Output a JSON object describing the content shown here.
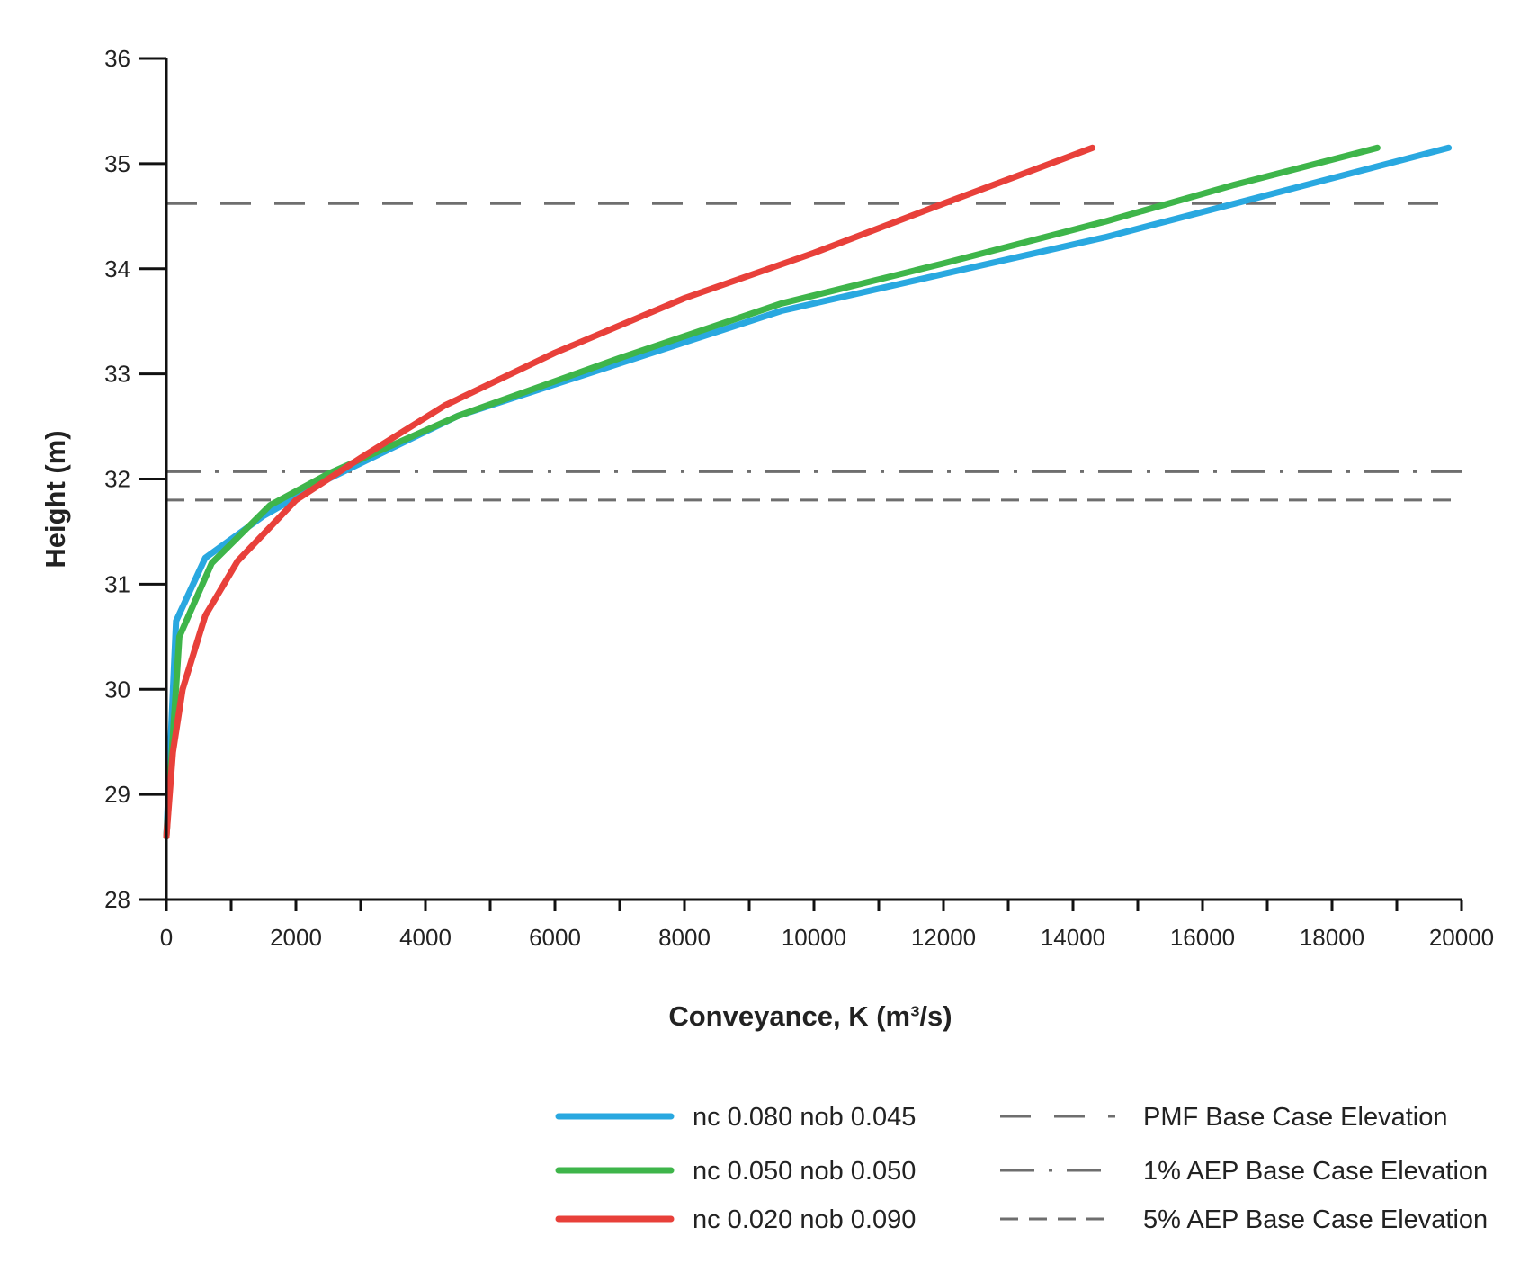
{
  "chart_data": {
    "type": "line",
    "title": "",
    "xlabel": "Conveyance, K (m³/s)",
    "ylabel": "Height (m)",
    "xlim": [
      0,
      20000
    ],
    "ylim": [
      28,
      36
    ],
    "xticks": [
      "0",
      "2000",
      "4000",
      "6000",
      "8000",
      "10000",
      "12000",
      "14000",
      "16000",
      "18000",
      "20000"
    ],
    "yticks": [
      "28",
      "29",
      "30",
      "31",
      "32",
      "33",
      "34",
      "35",
      "36"
    ],
    "grid": false,
    "legend_position": "bottom-right",
    "series": [
      {
        "name": "nc 0.080 nob 0.045",
        "color": "#29a8e0",
        "x": [
          0,
          150,
          600,
          1500,
          2500,
          4500,
          7000,
          9500,
          12000,
          14500,
          17000,
          19800
        ],
        "y": [
          28.6,
          30.65,
          31.25,
          31.65,
          32.0,
          32.6,
          33.1,
          33.6,
          33.95,
          34.3,
          34.7,
          35.15
        ]
      },
      {
        "name": "nc 0.050 nob 0.050",
        "color": "#3eb54a",
        "x": [
          0,
          200,
          700,
          1600,
          2500,
          4500,
          7000,
          9500,
          12000,
          14500,
          16500,
          18700
        ],
        "y": [
          28.6,
          30.5,
          31.2,
          31.75,
          32.05,
          32.6,
          33.15,
          33.67,
          34.05,
          34.45,
          34.8,
          35.15
        ]
      },
      {
        "name": "nc 0.020 nob 0.090",
        "color": "#e8403a",
        "x": [
          0,
          100,
          250,
          600,
          1100,
          2000,
          3000,
          4300,
          6000,
          8000,
          10000,
          12000,
          14300
        ],
        "y": [
          28.6,
          29.4,
          30.0,
          30.7,
          31.22,
          31.8,
          32.2,
          32.7,
          33.2,
          33.72,
          34.15,
          34.62,
          35.15
        ]
      }
    ],
    "reference_lines": [
      {
        "name": "PMF Base Case Elevation",
        "y": 34.62,
        "style": "long-dash",
        "color": "#6e6e6e"
      },
      {
        "name": "1% AEP Base Case Elevation",
        "y": 32.07,
        "style": "dash-dot",
        "color": "#6e6e6e"
      },
      {
        "name": "5% AEP Base Case Elevation",
        "y": 31.8,
        "style": "dash",
        "color": "#6e6e6e"
      }
    ]
  }
}
